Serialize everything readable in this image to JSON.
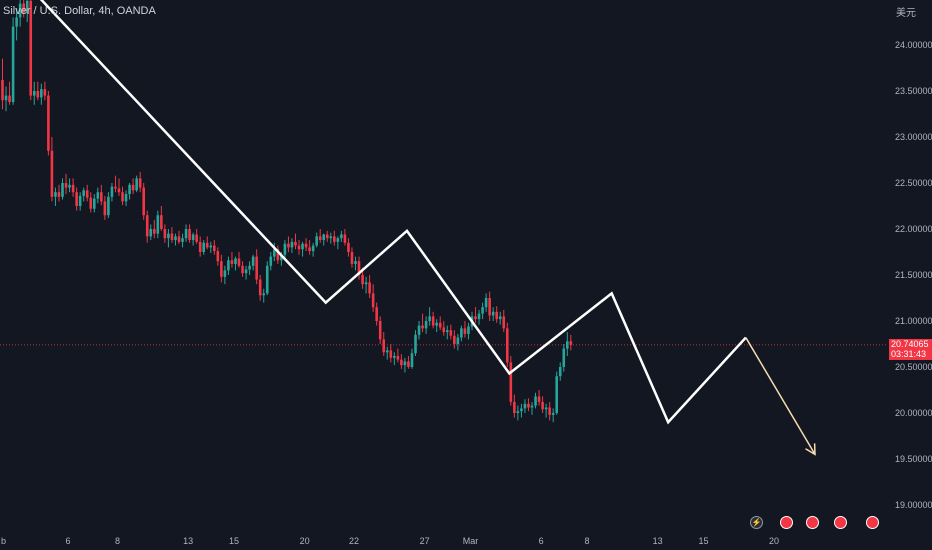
{
  "header": {
    "symbol_title": "Silver / U.S. Dollar, 4h, OANDA",
    "currency_label": "美元"
  },
  "price_tag": {
    "price": "20.74065",
    "countdown": "03:31:43"
  },
  "event_icons": [
    "lightning-icon",
    "flag-icon",
    "flag-icon",
    "flag-icon",
    "flag-icon"
  ],
  "colors": {
    "background": "#131722",
    "up": "#26a69a",
    "down": "#f23645",
    "wave_line": "#ffffff",
    "projection_arrow": "#f7dcb0",
    "price_line": "#f23645"
  },
  "chart_data": {
    "type": "candlestick",
    "title": "Silver / U.S. Dollar, 4h, OANDA",
    "ylabel": "美元",
    "y_ticks": [
      "24.00000",
      "23.50000",
      "23.00000",
      "22.50000",
      "22.00000",
      "21.50000",
      "21.00000",
      "20.50000",
      "20.00000",
      "19.50000",
      "19.00000"
    ],
    "ylim": [
      18.85,
      24.5
    ],
    "x_ticks": [
      "b",
      "6",
      "8",
      "13",
      "15",
      "20",
      "22",
      "27",
      "Mar",
      "6",
      "8",
      "13",
      "15",
      "20"
    ],
    "x_tick_index": [
      0,
      19,
      33,
      53,
      66,
      86,
      100,
      120,
      133,
      153,
      166,
      186,
      199,
      219
    ],
    "last_price": 20.74065,
    "candles": [
      [
        23.62,
        23.85,
        23.3,
        23.4
      ],
      [
        23.4,
        23.55,
        23.28,
        23.45
      ],
      [
        23.45,
        23.6,
        23.35,
        23.38
      ],
      [
        23.38,
        24.3,
        23.35,
        24.2
      ],
      [
        24.2,
        24.4,
        24.05,
        24.3
      ],
      [
        24.3,
        24.55,
        24.2,
        24.45
      ],
      [
        24.45,
        24.6,
        24.3,
        24.35
      ],
      [
        24.35,
        24.55,
        24.25,
        24.48
      ],
      [
        24.48,
        24.6,
        23.4,
        23.45
      ],
      [
        23.45,
        23.6,
        23.35,
        23.5
      ],
      [
        23.5,
        23.6,
        23.4,
        23.43
      ],
      [
        23.43,
        23.58,
        23.35,
        23.52
      ],
      [
        23.52,
        23.6,
        23.4,
        23.45
      ],
      [
        23.45,
        23.5,
        22.8,
        22.85
      ],
      [
        22.85,
        23.0,
        22.3,
        22.35
      ],
      [
        22.35,
        22.45,
        22.25,
        22.4
      ],
      [
        22.4,
        22.48,
        22.3,
        22.35
      ],
      [
        22.35,
        22.55,
        22.32,
        22.5
      ],
      [
        22.5,
        22.6,
        22.38,
        22.45
      ],
      [
        22.45,
        22.55,
        22.4,
        22.48
      ],
      [
        22.48,
        22.55,
        22.35,
        22.4
      ],
      [
        22.4,
        22.45,
        22.2,
        22.25
      ],
      [
        22.25,
        22.4,
        22.2,
        22.36
      ],
      [
        22.36,
        22.45,
        22.3,
        22.42
      ],
      [
        22.42,
        22.48,
        22.3,
        22.34
      ],
      [
        22.34,
        22.4,
        22.18,
        22.22
      ],
      [
        22.22,
        22.38,
        22.18,
        22.33
      ],
      [
        22.33,
        22.45,
        22.28,
        22.4
      ],
      [
        22.4,
        22.48,
        22.26,
        22.3
      ],
      [
        22.3,
        22.36,
        22.1,
        22.15
      ],
      [
        22.15,
        22.4,
        22.12,
        22.35
      ],
      [
        22.35,
        22.5,
        22.3,
        22.46
      ],
      [
        22.46,
        22.58,
        22.4,
        22.44
      ],
      [
        22.44,
        22.55,
        22.36,
        22.4
      ],
      [
        22.4,
        22.46,
        22.26,
        22.3
      ],
      [
        22.3,
        22.42,
        22.25,
        22.38
      ],
      [
        22.38,
        22.5,
        22.32,
        22.48
      ],
      [
        22.48,
        22.55,
        22.38,
        22.42
      ],
      [
        22.42,
        22.58,
        22.4,
        22.55
      ],
      [
        22.55,
        22.62,
        22.4,
        22.45
      ],
      [
        22.45,
        22.5,
        22.1,
        22.15
      ],
      [
        22.15,
        22.2,
        21.85,
        21.92
      ],
      [
        21.92,
        22.05,
        21.88,
        22.0
      ],
      [
        22.0,
        22.1,
        21.9,
        21.95
      ],
      [
        21.95,
        22.2,
        21.9,
        22.15
      ],
      [
        22.15,
        22.25,
        21.98,
        22.0
      ],
      [
        22.0,
        22.05,
        21.85,
        21.9
      ],
      [
        21.9,
        22.0,
        21.8,
        21.95
      ],
      [
        21.95,
        22.02,
        21.85,
        21.88
      ],
      [
        21.88,
        21.95,
        21.82,
        21.92
      ],
      [
        21.92,
        21.98,
        21.84,
        21.86
      ],
      [
        21.86,
        21.95,
        21.8,
        21.9
      ],
      [
        21.9,
        22.05,
        21.86,
        22.0
      ],
      [
        22.0,
        22.05,
        21.85,
        21.88
      ],
      [
        21.88,
        21.96,
        21.82,
        21.94
      ],
      [
        21.94,
        22.0,
        21.84,
        21.86
      ],
      [
        21.86,
        21.92,
        21.7,
        21.75
      ],
      [
        21.75,
        21.88,
        21.72,
        21.85
      ],
      [
        21.85,
        21.92,
        21.78,
        21.8
      ],
      [
        21.8,
        21.86,
        21.74,
        21.82
      ],
      [
        21.82,
        21.88,
        21.72,
        21.76
      ],
      [
        21.76,
        21.8,
        21.6,
        21.65
      ],
      [
        21.65,
        21.72,
        21.42,
        21.48
      ],
      [
        21.48,
        21.6,
        21.4,
        21.55
      ],
      [
        21.55,
        21.7,
        21.5,
        21.66
      ],
      [
        21.66,
        21.75,
        21.58,
        21.62
      ],
      [
        21.62,
        21.7,
        21.55,
        21.68
      ],
      [
        21.68,
        21.75,
        21.58,
        21.6
      ],
      [
        21.6,
        21.65,
        21.48,
        21.52
      ],
      [
        21.52,
        21.6,
        21.45,
        21.56
      ],
      [
        21.56,
        21.65,
        21.5,
        21.6
      ],
      [
        21.6,
        21.72,
        21.55,
        21.7
      ],
      [
        21.7,
        21.78,
        21.4,
        21.45
      ],
      [
        21.45,
        21.5,
        21.22,
        21.28
      ],
      [
        21.28,
        21.35,
        21.2,
        21.3
      ],
      [
        21.3,
        21.65,
        21.28,
        21.6
      ],
      [
        21.6,
        21.75,
        21.55,
        21.7
      ],
      [
        21.7,
        21.85,
        21.65,
        21.78
      ],
      [
        21.78,
        21.82,
        21.62,
        21.66
      ],
      [
        21.66,
        21.75,
        21.6,
        21.72
      ],
      [
        21.72,
        21.88,
        21.68,
        21.84
      ],
      [
        21.84,
        21.92,
        21.75,
        21.8
      ],
      [
        21.8,
        21.9,
        21.74,
        21.86
      ],
      [
        21.86,
        21.95,
        21.78,
        21.82
      ],
      [
        21.82,
        21.88,
        21.72,
        21.78
      ],
      [
        21.78,
        21.86,
        21.7,
        21.84
      ],
      [
        21.84,
        21.9,
        21.76,
        21.8
      ],
      [
        21.8,
        21.88,
        21.72,
        21.76
      ],
      [
        21.76,
        21.85,
        21.7,
        21.82
      ],
      [
        21.82,
        21.96,
        21.8,
        21.92
      ],
      [
        21.92,
        22.0,
        21.85,
        21.88
      ],
      [
        21.88,
        21.95,
        21.82,
        21.94
      ],
      [
        21.94,
        21.98,
        21.86,
        21.9
      ],
      [
        21.9,
        21.96,
        21.84,
        21.92
      ],
      [
        21.92,
        21.98,
        21.82,
        21.86
      ],
      [
        21.86,
        21.92,
        21.78,
        21.9
      ],
      [
        21.9,
        21.98,
        21.86,
        21.94
      ],
      [
        21.94,
        22.0,
        21.82,
        21.85
      ],
      [
        21.85,
        21.9,
        21.7,
        21.75
      ],
      [
        21.75,
        21.8,
        21.58,
        21.62
      ],
      [
        21.62,
        21.7,
        21.55,
        21.65
      ],
      [
        21.65,
        21.7,
        21.45,
        21.5
      ],
      [
        21.5,
        21.58,
        21.35,
        21.4
      ],
      [
        21.4,
        21.48,
        21.3,
        21.42
      ],
      [
        21.42,
        21.5,
        21.25,
        21.3
      ],
      [
        21.3,
        21.4,
        21.1,
        21.15
      ],
      [
        21.15,
        21.2,
        20.95,
        21.0
      ],
      [
        21.0,
        21.05,
        20.75,
        20.8
      ],
      [
        20.8,
        20.88,
        20.62,
        20.66
      ],
      [
        20.66,
        20.72,
        20.58,
        20.68
      ],
      [
        20.68,
        20.75,
        20.55,
        20.6
      ],
      [
        20.6,
        20.66,
        20.52,
        20.62
      ],
      [
        20.62,
        20.7,
        20.55,
        20.58
      ],
      [
        20.58,
        20.64,
        20.48,
        20.52
      ],
      [
        20.52,
        20.6,
        20.44,
        20.56
      ],
      [
        20.56,
        20.62,
        20.48,
        20.5
      ],
      [
        20.5,
        20.7,
        20.48,
        20.65
      ],
      [
        20.65,
        20.9,
        20.62,
        20.85
      ],
      [
        20.85,
        21.0,
        20.8,
        20.95
      ],
      [
        20.95,
        21.08,
        20.88,
        20.92
      ],
      [
        20.92,
        21.05,
        20.86,
        21.0
      ],
      [
        21.0,
        21.15,
        20.95,
        21.05
      ],
      [
        21.05,
        21.1,
        20.92,
        20.95
      ],
      [
        20.95,
        21.02,
        20.88,
        20.98
      ],
      [
        20.98,
        21.05,
        20.9,
        20.93
      ],
      [
        20.93,
        21.0,
        20.84,
        20.88
      ],
      [
        20.88,
        20.95,
        20.8,
        20.9
      ],
      [
        20.9,
        20.96,
        20.8,
        20.84
      ],
      [
        20.84,
        20.9,
        20.7,
        20.75
      ],
      [
        20.75,
        20.86,
        20.68,
        20.82
      ],
      [
        20.82,
        20.95,
        20.78,
        20.92
      ],
      [
        20.92,
        21.0,
        20.82,
        20.86
      ],
      [
        20.86,
        20.98,
        20.8,
        20.94
      ],
      [
        20.94,
        21.1,
        20.9,
        21.05
      ],
      [
        21.05,
        21.15,
        20.98,
        21.02
      ],
      [
        21.02,
        21.12,
        20.96,
        21.08
      ],
      [
        21.08,
        21.2,
        21.02,
        21.15
      ],
      [
        21.15,
        21.3,
        21.1,
        21.25
      ],
      [
        21.25,
        21.32,
        21.0,
        21.06
      ],
      [
        21.06,
        21.15,
        21.0,
        21.1
      ],
      [
        21.1,
        21.16,
        20.98,
        21.02
      ],
      [
        21.02,
        21.1,
        20.96,
        21.05
      ],
      [
        21.05,
        21.12,
        20.88,
        20.92
      ],
      [
        20.92,
        20.98,
        20.5,
        20.55
      ],
      [
        20.55,
        20.62,
        20.08,
        20.12
      ],
      [
        20.12,
        20.2,
        19.95,
        20.0
      ],
      [
        20.0,
        20.08,
        19.92,
        20.02
      ],
      [
        20.02,
        20.1,
        19.95,
        20.05
      ],
      [
        20.05,
        20.15,
        20.0,
        20.1
      ],
      [
        20.1,
        20.16,
        20.02,
        20.06
      ],
      [
        20.06,
        20.12,
        19.98,
        20.08
      ],
      [
        20.08,
        20.22,
        20.05,
        20.18
      ],
      [
        20.18,
        20.25,
        20.08,
        20.12
      ],
      [
        20.12,
        20.18,
        20.0,
        20.04
      ],
      [
        20.04,
        20.1,
        19.95,
        20.06
      ],
      [
        20.06,
        20.12,
        19.92,
        19.98
      ],
      [
        19.98,
        20.05,
        19.9,
        20.0
      ],
      [
        20.0,
        20.45,
        19.98,
        20.4
      ],
      [
        20.4,
        20.55,
        20.35,
        20.5
      ],
      [
        20.5,
        20.75,
        20.45,
        20.7
      ],
      [
        20.7,
        20.88,
        20.62,
        20.78
      ],
      [
        20.78,
        20.85,
        20.68,
        20.74
      ]
    ]
  }
}
